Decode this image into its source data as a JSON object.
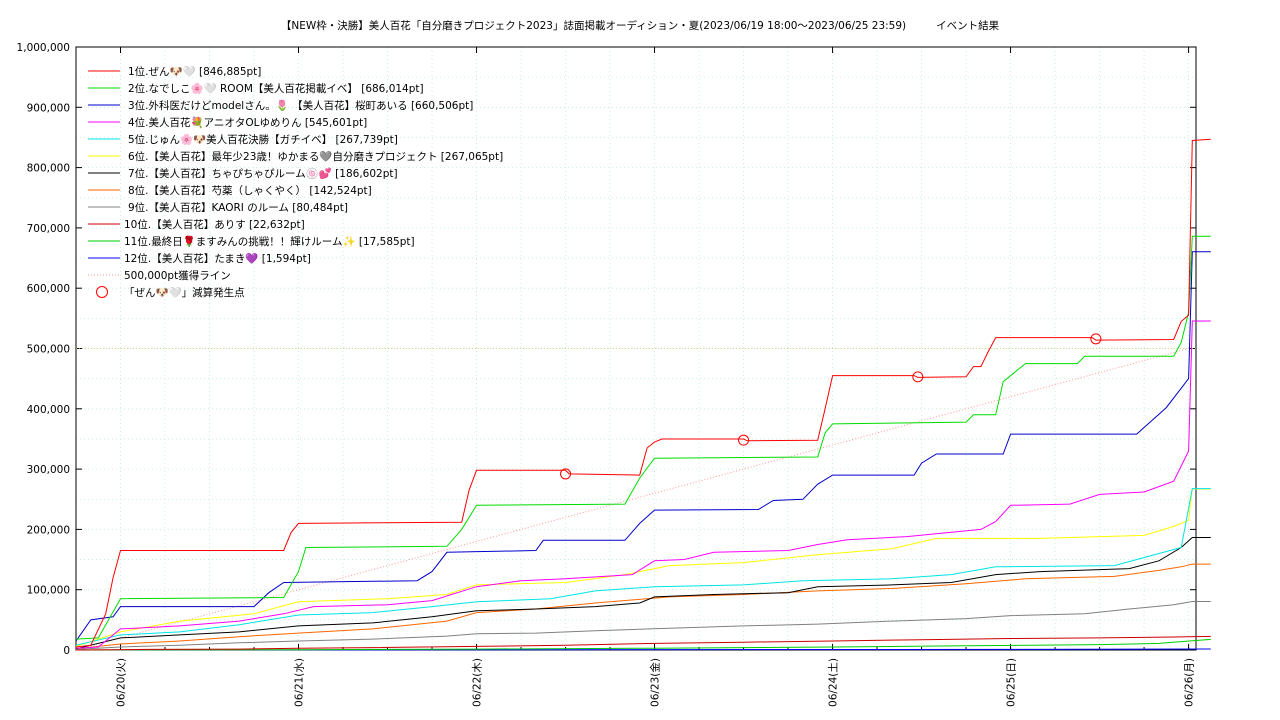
{
  "chart_data": {
    "type": "line",
    "title": "【NEW枠・決勝】美人百花「自分磨きプロジェクト2023」誌面掲載オーディション・夏(2023/06/19 18:00～2023/06/25 23:59)",
    "title_right": "イベント結果",
    "x_unit": "hours since 2023/06/19 18:00",
    "xlim": [
      0,
      151
    ],
    "ylim": [
      0,
      1000000
    ],
    "y_ticks": [
      0,
      100000,
      200000,
      300000,
      400000,
      500000,
      600000,
      700000,
      800000,
      900000,
      1000000
    ],
    "y_tick_labels": [
      "0",
      "100,000",
      "200,000",
      "300,000",
      "400,000",
      "500,000",
      "600,000",
      "700,000",
      "800,000",
      "900,000",
      "1,000,000"
    ],
    "x_ticks": [
      6,
      30,
      54,
      78,
      102,
      126,
      150
    ],
    "x_tick_labels": [
      "06/20(火)",
      "06/21(水)",
      "06/22(木)",
      "06/23(金)",
      "06/24(土)",
      "06/25(日)",
      "06/26(月)"
    ],
    "grid": true,
    "legend_position": "top-left",
    "series": [
      {
        "name": "1位.ぜん🐶🤍 [846,885pt]",
        "color": "#ff0000",
        "points": [
          [
            0,
            5000
          ],
          [
            2,
            8000
          ],
          [
            4,
            60000
          ],
          [
            5,
            120000
          ],
          [
            6,
            165000
          ],
          [
            28,
            165000
          ],
          [
            29,
            195000
          ],
          [
            30,
            210000
          ],
          [
            52,
            212000
          ],
          [
            53,
            265000
          ],
          [
            54,
            298000
          ],
          [
            66,
            298000
          ],
          [
            66.5,
            292000
          ],
          [
            76,
            290000
          ],
          [
            77,
            335000
          ],
          [
            78,
            345000
          ],
          [
            79,
            350000
          ],
          [
            90,
            350000
          ],
          [
            90.5,
            347000
          ],
          [
            100,
            348000
          ],
          [
            101,
            400000
          ],
          [
            102,
            455000
          ],
          [
            113,
            455000
          ],
          [
            113.5,
            452000
          ],
          [
            120,
            453000
          ],
          [
            121,
            470000
          ],
          [
            122,
            470000
          ],
          [
            123,
            495000
          ],
          [
            124,
            518000
          ],
          [
            137,
            518000
          ],
          [
            137.5,
            514000
          ],
          [
            148,
            515000
          ],
          [
            149,
            545000
          ],
          [
            150,
            555000
          ],
          [
            150.5,
            845000
          ],
          [
            153,
            846885
          ]
        ]
      },
      {
        "name": "2位.なでしこ🌸🤍 ROOM【美人百花掲載イベ】 [686,014pt]",
        "color": "#00dd00",
        "points": [
          [
            0,
            18000
          ],
          [
            3,
            20000
          ],
          [
            6,
            85000
          ],
          [
            28,
            87000
          ],
          [
            30,
            130000
          ],
          [
            31,
            170000
          ],
          [
            50,
            172000
          ],
          [
            52,
            200000
          ],
          [
            54,
            240000
          ],
          [
            74,
            242000
          ],
          [
            76,
            285000
          ],
          [
            78,
            318000
          ],
          [
            100,
            320000
          ],
          [
            101,
            360000
          ],
          [
            102,
            375000
          ],
          [
            120,
            378000
          ],
          [
            121,
            390000
          ],
          [
            124,
            390000
          ],
          [
            125,
            445000
          ],
          [
            127,
            465000
          ],
          [
            128,
            475000
          ],
          [
            135,
            475000
          ],
          [
            136,
            487000
          ],
          [
            148,
            487000
          ],
          [
            149,
            510000
          ],
          [
            150,
            560000
          ],
          [
            150.5,
            686014
          ],
          [
            153,
            686014
          ]
        ]
      },
      {
        "name": "3位.外科医だけどmodelさん。🌷 【美人百花】桜町あいる [660,506pt]",
        "color": "#0000cc",
        "points": [
          [
            0,
            15000
          ],
          [
            2,
            50000
          ],
          [
            5,
            55000
          ],
          [
            6,
            72000
          ],
          [
            24,
            72000
          ],
          [
            26,
            95000
          ],
          [
            28,
            112000
          ],
          [
            46,
            115000
          ],
          [
            48,
            130000
          ],
          [
            50,
            162000
          ],
          [
            62,
            165000
          ],
          [
            63,
            182000
          ],
          [
            74,
            182000
          ],
          [
            76,
            210000
          ],
          [
            78,
            232000
          ],
          [
            92,
            233000
          ],
          [
            94,
            248000
          ],
          [
            98,
            250000
          ],
          [
            100,
            275000
          ],
          [
            102,
            290000
          ],
          [
            113,
            290000
          ],
          [
            114,
            310000
          ],
          [
            116,
            325000
          ],
          [
            125,
            325000
          ],
          [
            126,
            358000
          ],
          [
            143,
            358000
          ],
          [
            145,
            380000
          ],
          [
            147,
            402000
          ],
          [
            150,
            450000
          ],
          [
            150.5,
            660506
          ],
          [
            153,
            660506
          ]
        ]
      },
      {
        "name": "4位.美人百花💐アニオタOLゆめりん [545,601pt]",
        "color": "#ff00ff",
        "points": [
          [
            0,
            3000
          ],
          [
            3,
            5000
          ],
          [
            6,
            35000
          ],
          [
            14,
            40000
          ],
          [
            22,
            48000
          ],
          [
            28,
            60000
          ],
          [
            32,
            72000
          ],
          [
            42,
            75000
          ],
          [
            48,
            82000
          ],
          [
            54,
            105000
          ],
          [
            60,
            115000
          ],
          [
            66,
            118000
          ],
          [
            75,
            125000
          ],
          [
            78,
            148000
          ],
          [
            82,
            150000
          ],
          [
            86,
            162000
          ],
          [
            96,
            165000
          ],
          [
            100,
            175000
          ],
          [
            104,
            183000
          ],
          [
            112,
            188000
          ],
          [
            122,
            200000
          ],
          [
            124,
            213000
          ],
          [
            126,
            240000
          ],
          [
            134,
            242000
          ],
          [
            138,
            258000
          ],
          [
            144,
            262000
          ],
          [
            148,
            280000
          ],
          [
            150,
            330000
          ],
          [
            150.5,
            545601
          ],
          [
            153,
            545601
          ]
        ]
      },
      {
        "name": "5位.じゅん🌸🐶美人百花決勝【ガチイベ】 [267,739pt]",
        "color": "#00e5e5",
        "points": [
          [
            0,
            8000
          ],
          [
            6,
            25000
          ],
          [
            14,
            30000
          ],
          [
            22,
            42000
          ],
          [
            30,
            58000
          ],
          [
            40,
            62000
          ],
          [
            48,
            72000
          ],
          [
            54,
            80000
          ],
          [
            64,
            85000
          ],
          [
            70,
            98000
          ],
          [
            78,
            105000
          ],
          [
            90,
            108000
          ],
          [
            98,
            115000
          ],
          [
            110,
            118000
          ],
          [
            118,
            125000
          ],
          [
            124,
            138000
          ],
          [
            140,
            140000
          ],
          [
            146,
            160000
          ],
          [
            149,
            170000
          ],
          [
            150.5,
            267739
          ],
          [
            153,
            267739
          ]
        ]
      },
      {
        "name": "6位.【美人百花】最年少23歳！ゆかまる🩶自分磨きプロジェクト [267,065pt]",
        "color": "#ffff00",
        "points": [
          [
            0,
            6000
          ],
          [
            6,
            30000
          ],
          [
            14,
            48000
          ],
          [
            24,
            60000
          ],
          [
            30,
            80000
          ],
          [
            42,
            85000
          ],
          [
            50,
            92000
          ],
          [
            54,
            108000
          ],
          [
            66,
            112000
          ],
          [
            74,
            125000
          ],
          [
            80,
            140000
          ],
          [
            90,
            145000
          ],
          [
            100,
            158000
          ],
          [
            110,
            168000
          ],
          [
            116,
            185000
          ],
          [
            130,
            185000
          ],
          [
            144,
            190000
          ],
          [
            148,
            205000
          ],
          [
            150,
            215000
          ],
          [
            150.5,
            267065
          ],
          [
            153,
            267065
          ]
        ]
      },
      {
        "name": "7位.【美人百花】ちゃぴちゃぴルーム🍥💕 [186,602pt]",
        "color": "#000000",
        "points": [
          [
            0,
            2000
          ],
          [
            6,
            20000
          ],
          [
            14,
            25000
          ],
          [
            22,
            30000
          ],
          [
            30,
            40000
          ],
          [
            40,
            45000
          ],
          [
            48,
            55000
          ],
          [
            54,
            65000
          ],
          [
            62,
            68000
          ],
          [
            70,
            72000
          ],
          [
            76,
            78000
          ],
          [
            78,
            88000
          ],
          [
            86,
            92000
          ],
          [
            96,
            95000
          ],
          [
            100,
            105000
          ],
          [
            110,
            108000
          ],
          [
            118,
            112000
          ],
          [
            124,
            125000
          ],
          [
            130,
            130000
          ],
          [
            142,
            135000
          ],
          [
            146,
            148000
          ],
          [
            149,
            170000
          ],
          [
            150.5,
            186602
          ],
          [
            153,
            186602
          ]
        ]
      },
      {
        "name": "8位.【美人百花】芍薬（しゃくやく） [142,524pt]",
        "color": "#ff6600",
        "points": [
          [
            0,
            2000
          ],
          [
            6,
            10000
          ],
          [
            14,
            15000
          ],
          [
            22,
            22000
          ],
          [
            30,
            28000
          ],
          [
            40,
            35000
          ],
          [
            50,
            48000
          ],
          [
            54,
            62000
          ],
          [
            62,
            68000
          ],
          [
            70,
            78000
          ],
          [
            80,
            88000
          ],
          [
            90,
            92000
          ],
          [
            100,
            98000
          ],
          [
            110,
            102000
          ],
          [
            120,
            110000
          ],
          [
            128,
            118000
          ],
          [
            140,
            122000
          ],
          [
            146,
            132000
          ],
          [
            149,
            138000
          ],
          [
            150.5,
            142524
          ],
          [
            153,
            142524
          ]
        ]
      },
      {
        "name": "9位.【美人百花】KAORI のルーム [80,484pt]",
        "color": "#808080",
        "points": [
          [
            0,
            1000
          ],
          [
            6,
            5000
          ],
          [
            14,
            8000
          ],
          [
            22,
            12000
          ],
          [
            30,
            15000
          ],
          [
            40,
            18000
          ],
          [
            50,
            23000
          ],
          [
            54,
            27000
          ],
          [
            62,
            28000
          ],
          [
            70,
            32000
          ],
          [
            80,
            36000
          ],
          [
            90,
            40000
          ],
          [
            100,
            43000
          ],
          [
            110,
            48000
          ],
          [
            120,
            52000
          ],
          [
            126,
            57000
          ],
          [
            136,
            60000
          ],
          [
            142,
            68000
          ],
          [
            148,
            75000
          ],
          [
            150.5,
            80484
          ],
          [
            153,
            80484
          ]
        ]
      },
      {
        "name": "10位.【美人百花】ありす [22,632pt]",
        "color": "#cc0000",
        "points": [
          [
            0,
            0
          ],
          [
            10,
            1000
          ],
          [
            22,
            1500
          ],
          [
            30,
            3000
          ],
          [
            40,
            4000
          ],
          [
            54,
            6000
          ],
          [
            66,
            8000
          ],
          [
            78,
            11000
          ],
          [
            90,
            13000
          ],
          [
            102,
            15000
          ],
          [
            114,
            17000
          ],
          [
            126,
            19000
          ],
          [
            138,
            20000
          ],
          [
            148,
            21500
          ],
          [
            153,
            22632
          ]
        ]
      },
      {
        "name": "11位.最終日🌹ますみんの挑戦！！輝けルーム✨ [17,585pt]",
        "color": "#00cc00",
        "points": [
          [
            0,
            0
          ],
          [
            30,
            500
          ],
          [
            54,
            1500
          ],
          [
            78,
            3000
          ],
          [
            102,
            5000
          ],
          [
            120,
            7000
          ],
          [
            138,
            9000
          ],
          [
            146,
            11000
          ],
          [
            149,
            14000
          ],
          [
            153,
            17585
          ]
        ]
      },
      {
        "name": "12位.【美人百花】たまき💜 [1,594pt]",
        "color": "#0000ff",
        "points": [
          [
            0,
            0
          ],
          [
            30,
            200
          ],
          [
            78,
            600
          ],
          [
            126,
            1000
          ],
          [
            153,
            1594
          ]
        ]
      }
    ],
    "reference_line": {
      "name": "500,000pt獲得ライン",
      "color": "#ff9999",
      "points": [
        [
          0,
          0
        ],
        [
          150,
          500000
        ]
      ]
    },
    "markers": {
      "name": "「ぜん🐶🤍」減算発生点",
      "color": "#ff0000",
      "points": [
        [
          66,
          292000
        ],
        [
          90,
          348000
        ],
        [
          113.5,
          453000
        ],
        [
          137.5,
          516000
        ]
      ]
    }
  }
}
